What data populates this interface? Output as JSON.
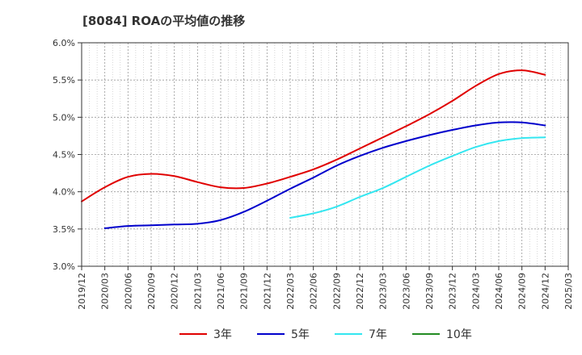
{
  "chart_data": {
    "type": "line",
    "title": "[8084]  ROAの平均値の推移",
    "xlabel": "",
    "ylabel": "",
    "x_ticks": [
      "2019/12",
      "2020/03",
      "2020/06",
      "2020/09",
      "2020/12",
      "2021/03",
      "2021/06",
      "2021/09",
      "2021/12",
      "2022/03",
      "2022/06",
      "2022/09",
      "2022/12",
      "2023/03",
      "2023/06",
      "2023/09",
      "2023/12",
      "2024/03",
      "2024/06",
      "2024/09",
      "2024/12",
      "2025/03"
    ],
    "y_ticks": [
      "3.0%",
      "3.5%",
      "4.0%",
      "4.5%",
      "5.0%",
      "5.5%",
      "6.0%"
    ],
    "ylim": [
      3.0,
      6.0
    ],
    "grid": true,
    "legend_position": "bottom",
    "series": [
      {
        "name": "3年",
        "color": "#e00000",
        "points": [
          [
            "2019/12",
            3.87
          ],
          [
            "2020/03",
            4.06
          ],
          [
            "2020/06",
            4.2
          ],
          [
            "2020/09",
            4.24
          ],
          [
            "2020/12",
            4.21
          ],
          [
            "2021/03",
            4.13
          ],
          [
            "2021/06",
            4.06
          ],
          [
            "2021/09",
            4.05
          ],
          [
            "2021/12",
            4.11
          ],
          [
            "2022/03",
            4.2
          ],
          [
            "2022/06",
            4.3
          ],
          [
            "2022/09",
            4.43
          ],
          [
            "2022/12",
            4.58
          ],
          [
            "2023/03",
            4.73
          ],
          [
            "2023/06",
            4.88
          ],
          [
            "2023/09",
            5.04
          ],
          [
            "2023/12",
            5.22
          ],
          [
            "2024/03",
            5.42
          ],
          [
            "2024/06",
            5.58
          ],
          [
            "2024/09",
            5.63
          ],
          [
            "2024/12",
            5.57
          ]
        ]
      },
      {
        "name": "5年",
        "color": "#0000cc",
        "points": [
          [
            "2020/03",
            3.51
          ],
          [
            "2020/06",
            3.54
          ],
          [
            "2020/09",
            3.55
          ],
          [
            "2020/12",
            3.56
          ],
          [
            "2021/03",
            3.57
          ],
          [
            "2021/06",
            3.62
          ],
          [
            "2021/09",
            3.73
          ],
          [
            "2021/12",
            3.88
          ],
          [
            "2022/03",
            4.04
          ],
          [
            "2022/06",
            4.19
          ],
          [
            "2022/09",
            4.35
          ],
          [
            "2022/12",
            4.48
          ],
          [
            "2023/03",
            4.59
          ],
          [
            "2023/06",
            4.68
          ],
          [
            "2023/09",
            4.76
          ],
          [
            "2023/12",
            4.83
          ],
          [
            "2024/03",
            4.89
          ],
          [
            "2024/06",
            4.93
          ],
          [
            "2024/09",
            4.93
          ],
          [
            "2024/12",
            4.89
          ]
        ]
      },
      {
        "name": "7年",
        "color": "#33e6f0",
        "points": [
          [
            "2022/03",
            3.65
          ],
          [
            "2022/06",
            3.71
          ],
          [
            "2022/09",
            3.8
          ],
          [
            "2022/12",
            3.93
          ],
          [
            "2023/03",
            4.05
          ],
          [
            "2023/06",
            4.2
          ],
          [
            "2023/09",
            4.35
          ],
          [
            "2023/12",
            4.48
          ],
          [
            "2024/03",
            4.6
          ],
          [
            "2024/06",
            4.68
          ],
          [
            "2024/09",
            4.72
          ],
          [
            "2024/12",
            4.73
          ]
        ]
      },
      {
        "name": "10年",
        "color": "#228b22",
        "points": []
      }
    ]
  }
}
